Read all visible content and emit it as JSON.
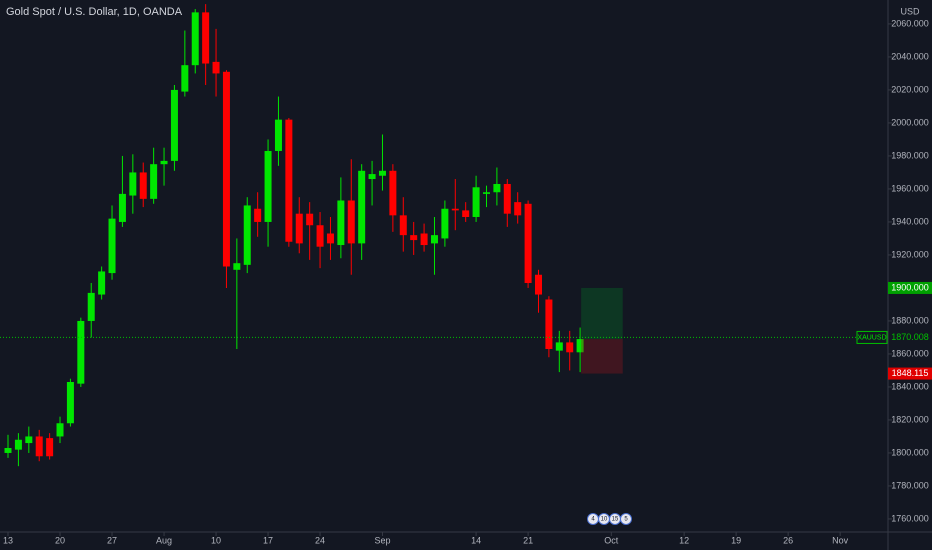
{
  "chart_data": {
    "type": "candlestick",
    "title": "Gold Spot / U.S. Dollar, 1D, OANDA",
    "currency": "USD",
    "up_color": "#00e600",
    "down_color": "#ff0000",
    "grid": false,
    "x": [
      0,
      1,
      2,
      3,
      4,
      5,
      6,
      7,
      8,
      9,
      10,
      11,
      12,
      13,
      14,
      15,
      16,
      17,
      18,
      19,
      20,
      21,
      22,
      23,
      24,
      25,
      26,
      27,
      28,
      29,
      30,
      31,
      32,
      33,
      34,
      35,
      36,
      37,
      38,
      39,
      40,
      41,
      42,
      43,
      44,
      45,
      46,
      47,
      48,
      49,
      50,
      51,
      52,
      53,
      54,
      55
    ],
    "open": [
      1800,
      1802,
      1806,
      1810,
      1809,
      1810,
      1818,
      1842,
      1880,
      1896,
      1909,
      1940,
      1956,
      1970,
      1954,
      1975,
      1977,
      2019,
      2035,
      2067,
      2037,
      2031,
      1911,
      1914,
      1948,
      1940,
      1983,
      2002,
      1945,
      1945,
      1938,
      1933,
      1926,
      1953,
      1927,
      1966,
      1968,
      1971,
      1944,
      1932,
      1933,
      1927,
      1930,
      1948,
      1947,
      1943,
      1957,
      1958,
      1963,
      1952,
      1951,
      1908,
      1893,
      1862,
      1867,
      1861
    ],
    "high": [
      1811,
      1812,
      1816,
      1814,
      1812,
      1822,
      1845,
      1882,
      1903,
      1913,
      1950,
      1980,
      1981,
      1976,
      1985,
      1985,
      2023,
      2056,
      2069,
      2072,
      2057,
      2032,
      1930,
      1955,
      1958,
      1990,
      2016,
      2003,
      1955,
      1952,
      1946,
      1943,
      1967,
      1978,
      1975,
      1977,
      1993,
      1975,
      1955,
      1940,
      1939,
      1943,
      1953,
      1966,
      1952,
      1968,
      1962,
      1973,
      1966,
      1958,
      1953,
      1911,
      1895,
      1874,
      1874,
      1876
    ],
    "low": [
      1797,
      1792,
      1800,
      1795,
      1796,
      1806,
      1816,
      1840,
      1870,
      1893,
      1905,
      1937,
      1945,
      1949,
      1951,
      1962,
      1971,
      2016,
      2030,
      2023,
      2016,
      1900,
      1863,
      1909,
      1931,
      1925,
      1974,
      1925,
      1921,
      1917,
      1912,
      1917,
      1918,
      1908,
      1917,
      1950,
      1959,
      1934,
      1922,
      1920,
      1922,
      1908,
      1925,
      1935,
      1940,
      1940,
      1949,
      1950,
      1937,
      1939,
      1900,
      1885,
      1858,
      1849,
      1850,
      1849
    ],
    "close": [
      1803,
      1808,
      1810,
      1798,
      1798,
      1818,
      1843,
      1880,
      1897,
      1910,
      1942,
      1957,
      1970,
      1954,
      1975,
      1977,
      2020,
      2035,
      2067,
      2036,
      2030,
      1913,
      1915,
      1950,
      1940,
      1983,
      2002,
      1928,
      1927,
      1938,
      1925,
      1927,
      1953,
      1927,
      1971,
      1969,
      1971,
      1944,
      1932,
      1929,
      1926,
      1932,
      1948,
      1947,
      1943,
      1961,
      1958,
      1963,
      1945,
      1944,
      1903,
      1896,
      1863,
      1867,
      1861,
      1869
    ],
    "xlim": [
      -0.77,
      84.6
    ],
    "xticks": [
      {
        "value": 0,
        "label": "13"
      },
      {
        "value": 5,
        "label": "20"
      },
      {
        "value": 10,
        "label": "27"
      },
      {
        "value": 15,
        "label": "Aug"
      },
      {
        "value": 20,
        "label": "10"
      },
      {
        "value": 25,
        "label": "17"
      },
      {
        "value": 30,
        "label": "24"
      },
      {
        "value": 36,
        "label": "Sep"
      },
      {
        "value": 45,
        "label": "14"
      },
      {
        "value": 50,
        "label": "21"
      },
      {
        "value": 58,
        "label": "Oct"
      },
      {
        "value": 65,
        "label": "12"
      },
      {
        "value": 70,
        "label": "19"
      },
      {
        "value": 75,
        "label": "26"
      },
      {
        "value": 80,
        "label": "Nov"
      }
    ],
    "ylim": [
      1752.1,
      2074.5
    ],
    "yticks": [
      {
        "value": 1760,
        "label": "1760.000"
      },
      {
        "value": 1780,
        "label": "1780.000"
      },
      {
        "value": 1800,
        "label": "1800.000"
      },
      {
        "value": 1820,
        "label": "1820.000"
      },
      {
        "value": 1840,
        "label": "1840.000"
      },
      {
        "value": 1860,
        "label": "1860.000"
      },
      {
        "value": 1880,
        "label": "1880.000"
      },
      {
        "value": 1920,
        "label": "1920.000"
      },
      {
        "value": 1940,
        "label": "1940.000"
      },
      {
        "value": 1960,
        "label": "1960.000"
      },
      {
        "value": 1980,
        "label": "1980.000"
      },
      {
        "value": 2000,
        "label": "2000.000"
      },
      {
        "value": 2020,
        "label": "2020.000"
      },
      {
        "value": 2040,
        "label": "2040.000"
      },
      {
        "value": 2060,
        "label": "2060.000"
      }
    ],
    "last_price": {
      "symbol": "XAUUSD",
      "value": 1870.008
    },
    "position": {
      "start": 55.1,
      "end": 59.1,
      "entry": 1869,
      "target": {
        "value": 1900,
        "label": "1900.000"
      },
      "stop": 1848.115
    },
    "events": [
      "4",
      "10",
      "15",
      "5"
    ]
  }
}
